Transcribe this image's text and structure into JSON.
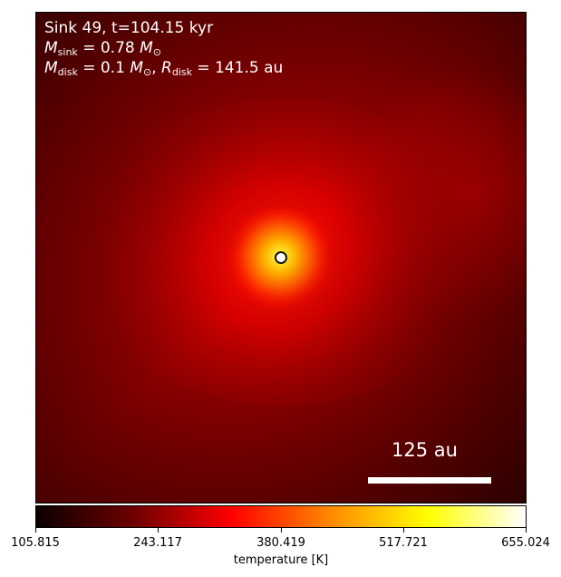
{
  "annotations": {
    "line1": "Sink 49, t=104.15 kyr",
    "line2_symbol": "M",
    "line2_sub": "sink",
    "line2_rest": " = 0.78 ",
    "line2_unit": "M",
    "line2_unit_sub": "⊙",
    "line3_symbol": "M",
    "line3_sub": "disk",
    "line3_mid": " = 0.1 ",
    "line3_unit": "M",
    "line3_unit_sub": "⊙",
    "line3_sep": ", ",
    "line3_symbol2": "R",
    "line3_sub2": "disk",
    "line3_rest": " = 141.5 au"
  },
  "scale_bar": {
    "label": "125 au"
  },
  "colorbar": {
    "label": "temperature [K]",
    "ticks": [
      "105.815",
      "243.117",
      "380.419",
      "517.721",
      "655.024"
    ],
    "colormap": "hot",
    "colors": [
      "#0b0000",
      "#6e0000",
      "#ff0000",
      "#ff8800",
      "#ffff00",
      "#ffffff"
    ]
  },
  "colors": {
    "marker": "#ffffff",
    "annotation_text": "#ffffff"
  }
}
